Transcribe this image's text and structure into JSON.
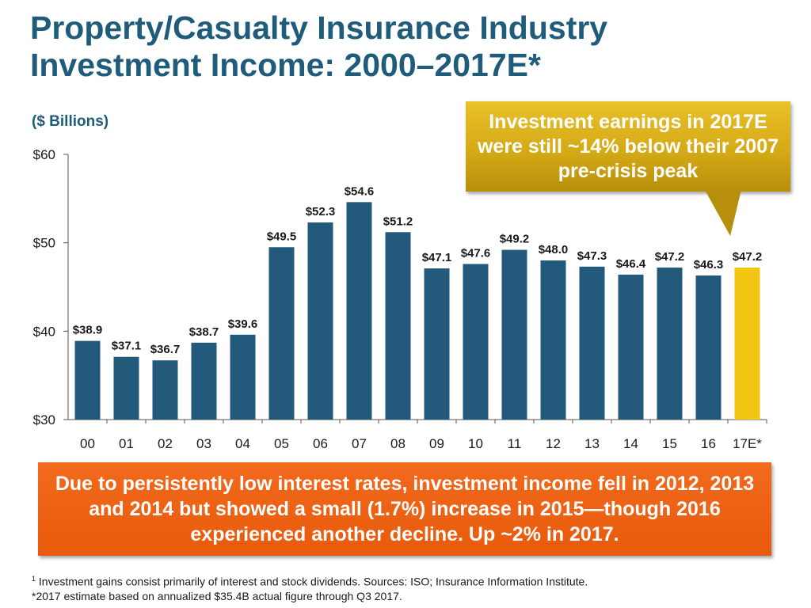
{
  "title_line1": "Property/Casualty Insurance Industry",
  "title_line2": "Investment Income: 2000–2017E*",
  "units": "($ Billions)",
  "callout": "Investment earnings in 2017E were still ~14% below their 2007 pre-crisis peak",
  "note": "Due to persistently low interest rates, investment income fell in 2012, 2013 and 2014 but showed a small (1.7%) increase in 2015—though 2016 experienced another decline. Up ~2% in  2017.",
  "footnote1_mark": "1",
  "footnote1": "Investment gains consist primarily of interest and stock dividends. Sources: ISO; Insurance Information Institute.",
  "footnote2": "*2017 estimate based on annualized $35.4B actual figure through Q3 2017.",
  "colors": {
    "bar": "#235a7c",
    "highlight": "#f1c613",
    "title": "#1f5c7c",
    "callout": "#d2a714",
    "note": "#ea5c10"
  },
  "chart_data": {
    "type": "bar",
    "title": "Property/Casualty Insurance Industry Investment Income: 2000–2017E*",
    "xlabel": "",
    "ylabel": "($ Billions)",
    "ylim": [
      30,
      60
    ],
    "yticks": [
      30,
      40,
      50,
      60
    ],
    "ytick_labels": [
      "$30",
      "$40",
      "$50",
      "$60"
    ],
    "grid": false,
    "categories": [
      "00",
      "01",
      "02",
      "03",
      "04",
      "05",
      "06",
      "07",
      "08",
      "09",
      "10",
      "11",
      "12",
      "13",
      "14",
      "15",
      "16",
      "17E*"
    ],
    "values": [
      38.9,
      37.1,
      36.7,
      38.7,
      39.6,
      49.5,
      52.3,
      54.6,
      51.2,
      47.1,
      47.6,
      49.2,
      48.0,
      47.3,
      46.4,
      47.2,
      46.3,
      47.2
    ],
    "value_labels": [
      "$38.9",
      "$37.1",
      "$36.7",
      "$38.7",
      "$39.6",
      "$49.5",
      "$52.3",
      "$54.6",
      "$51.2",
      "$47.1",
      "$47.6",
      "$49.2",
      "$48.0",
      "$47.3",
      "$46.4",
      "$47.2",
      "$46.3",
      "$47.2"
    ],
    "highlight_index": 17
  }
}
